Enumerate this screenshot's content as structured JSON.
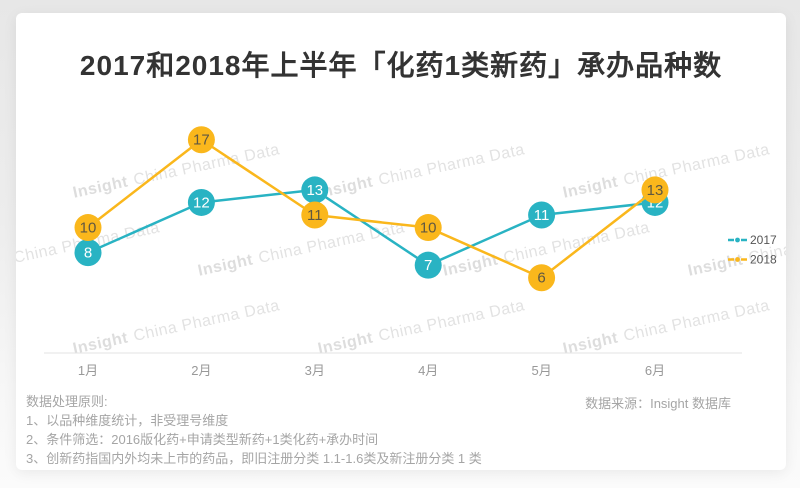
{
  "watermark": {
    "brand": "Insight",
    "rest": "China Pharma Data"
  },
  "chart_data": {
    "type": "line",
    "title": "2017和2018年上半年「化药1类新药」承办品种数",
    "categories": [
      "1月",
      "2月",
      "3月",
      "4月",
      "5月",
      "6月"
    ],
    "series": [
      {
        "name": "2017",
        "color": "#29b3c3",
        "label_color": "#ffffff",
        "values": [
          8,
          12,
          13,
          7,
          11,
          12
        ]
      },
      {
        "name": "2018",
        "color": "#fab71c",
        "label_color": "#5f5742",
        "values": [
          10,
          17,
          11,
          10,
          6,
          13
        ]
      }
    ],
    "xlabel": "",
    "ylabel": "",
    "ylim": [
      0,
      18
    ],
    "grid": false,
    "legend_position": "right",
    "axis_color": "#e3e3e3",
    "tick_color": "#999999",
    "legend_text_color": "#555555"
  },
  "footer": {
    "heading": "数据处理原则:",
    "items": [
      "1、以品种维度统计，非受理号维度",
      "2、条件筛选：2016版化药+申请类型新药+1类化药+承办时间",
      "3、创新药指国内外均未上市的药品，即旧注册分类 1.1-1.6类及新注册分类 1 类"
    ]
  },
  "source": "数据来源：Insight 数据库"
}
